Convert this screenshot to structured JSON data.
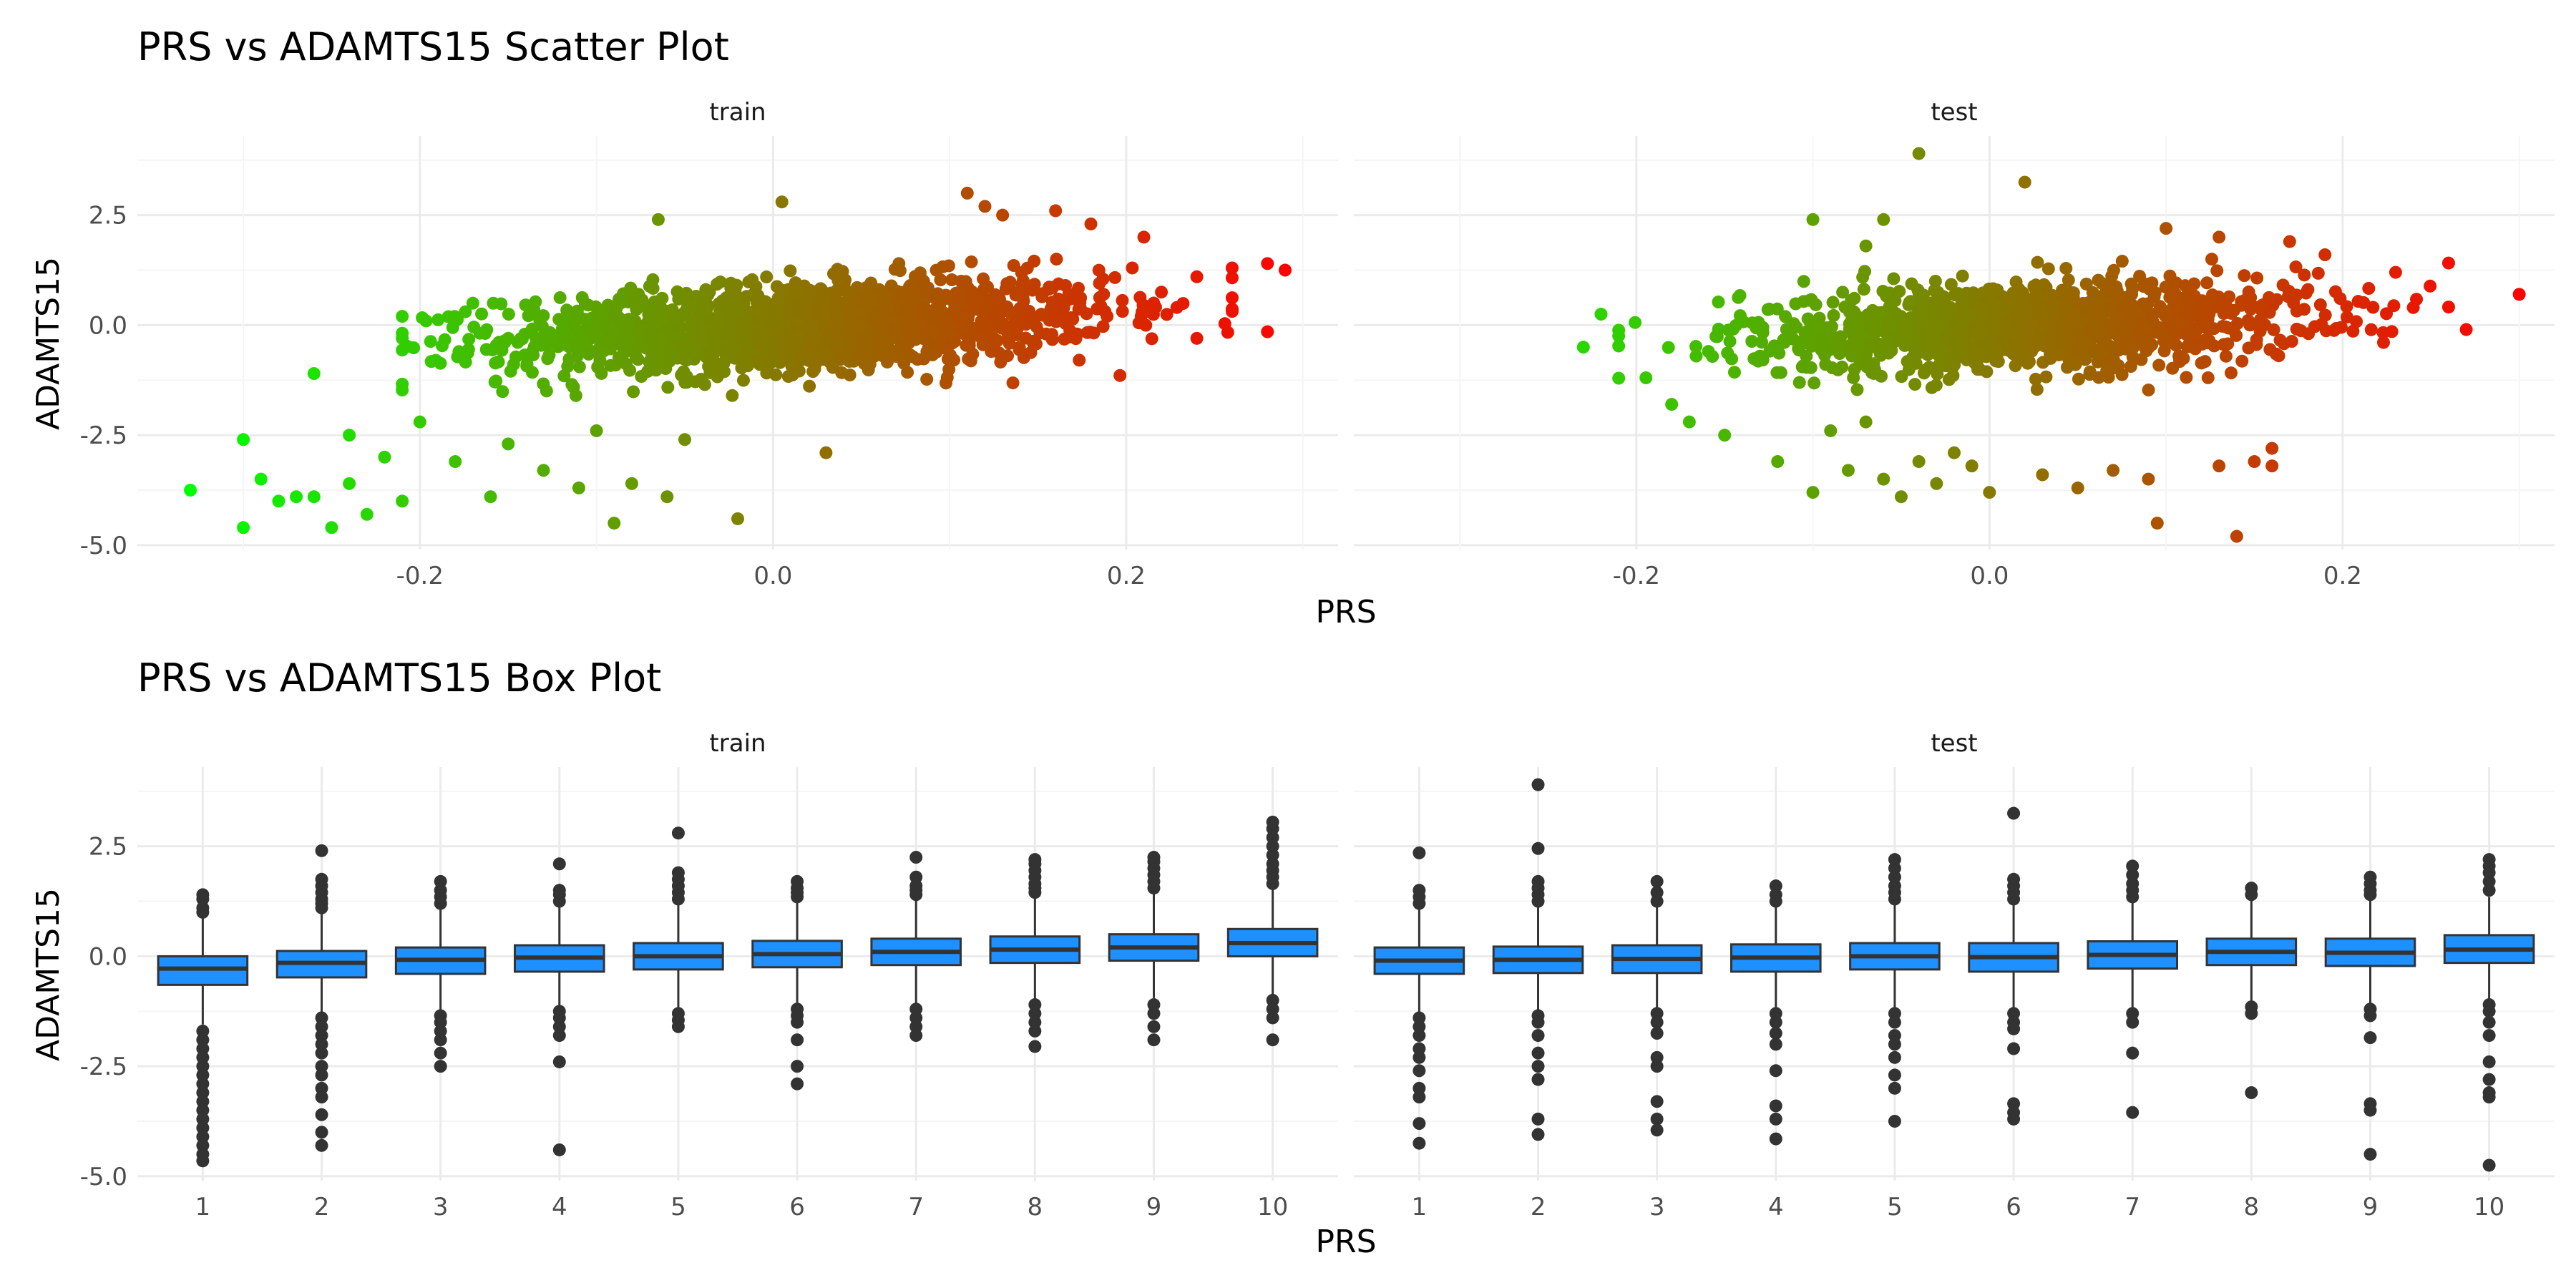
{
  "colors": {
    "grid_major": "#ebebeb",
    "grid_minor": "#f5f5f5",
    "point_low": "#00ff00",
    "point_high": "#ff0000",
    "box_fill": "#1e90ff",
    "box_line": "#333333",
    "outlier": "#333333"
  },
  "chart_data": [
    {
      "type": "scatter",
      "title": "PRS vs ADAMTS15 Scatter Plot",
      "xlabel": "PRS",
      "ylabel": "ADAMTS15",
      "color_by": "PRS",
      "color_scale": [
        "#00ff00",
        "#ff0000"
      ],
      "grid": true,
      "legend": "none",
      "panels": [
        {
          "name": "train",
          "xlim": [
            -0.36,
            0.32
          ],
          "ylim": [
            -5.1,
            4.3
          ],
          "xticks": [
            -0.2,
            0.0,
            0.2
          ],
          "xtick_labels": [
            "-0.2",
            "0.0",
            "0.2"
          ],
          "yticks": [
            -5.0,
            -2.5,
            0.0,
            2.5
          ],
          "ytick_labels": [
            "-5.0",
            "-2.5",
            "0.0",
            "2.5"
          ],
          "cloud": {
            "n": 1600,
            "x_mean": 0.02,
            "x_sd": 0.085,
            "slope": 3.2,
            "intercept": -0.05,
            "y_sd": 0.5
          },
          "outlier_points": [
            [
              -0.33,
              -3.75
            ],
            [
              -0.3,
              -2.6
            ],
            [
              -0.3,
              -4.6
            ],
            [
              -0.29,
              -3.5
            ],
            [
              -0.28,
              -4.0
            ],
            [
              -0.27,
              -3.9
            ],
            [
              -0.26,
              -3.9
            ],
            [
              -0.25,
              -4.6
            ],
            [
              -0.24,
              -3.6
            ],
            [
              -0.23,
              -4.3
            ],
            [
              -0.22,
              -3.0
            ],
            [
              -0.21,
              -4.0
            ],
            [
              -0.26,
              -1.1
            ],
            [
              -0.24,
              -2.5
            ],
            [
              -0.2,
              -2.2
            ],
            [
              -0.18,
              -3.1
            ],
            [
              -0.16,
              -3.9
            ],
            [
              -0.15,
              -2.7
            ],
            [
              -0.13,
              -3.3
            ],
            [
              -0.11,
              -3.7
            ],
            [
              -0.1,
              -2.4
            ],
            [
              -0.09,
              -4.5
            ],
            [
              -0.08,
              -3.6
            ],
            [
              -0.06,
              -3.9
            ],
            [
              -0.05,
              -2.6
            ],
            [
              -0.02,
              -4.4
            ],
            [
              0.03,
              -2.9
            ],
            [
              -0.065,
              2.4
            ],
            [
              0.005,
              2.8
            ],
            [
              0.11,
              3.0
            ],
            [
              0.12,
              2.7
            ],
            [
              0.13,
              2.5
            ],
            [
              0.16,
              2.6
            ],
            [
              0.18,
              2.3
            ],
            [
              0.21,
              2.0
            ],
            [
              0.24,
              1.1
            ],
            [
              0.26,
              1.3
            ],
            [
              0.28,
              1.4
            ],
            [
              0.29,
              1.25
            ],
            [
              0.28,
              -0.15
            ],
            [
              0.24,
              -0.3
            ],
            [
              -0.17,
              0.5
            ],
            [
              -0.21,
              0.2
            ]
          ]
        },
        {
          "name": "test",
          "xlim": [
            -0.36,
            0.32
          ],
          "ylim": [
            -5.1,
            4.3
          ],
          "xticks": [
            -0.2,
            0.0,
            0.2
          ],
          "xtick_labels": [
            "-0.2",
            "0.0",
            "0.2"
          ],
          "yticks": [
            -5.0,
            -2.5,
            0.0,
            2.5
          ],
          "ytick_labels": [
            "-5.0",
            "-2.5",
            "0.0",
            "2.5"
          ],
          "cloud": {
            "n": 1200,
            "x_mean": 0.02,
            "x_sd": 0.08,
            "slope": 2.6,
            "intercept": -0.05,
            "y_sd": 0.5
          },
          "outlier_points": [
            [
              -0.23,
              -0.5
            ],
            [
              -0.22,
              0.25
            ],
            [
              -0.18,
              -1.8
            ],
            [
              -0.17,
              -2.2
            ],
            [
              -0.15,
              -2.5
            ],
            [
              -0.12,
              -3.1
            ],
            [
              -0.1,
              -3.8
            ],
            [
              -0.09,
              -2.4
            ],
            [
              -0.08,
              -3.3
            ],
            [
              -0.07,
              -2.2
            ],
            [
              -0.06,
              -3.5
            ],
            [
              -0.05,
              -3.9
            ],
            [
              -0.04,
              -3.1
            ],
            [
              -0.03,
              -3.6
            ],
            [
              -0.02,
              -2.9
            ],
            [
              -0.01,
              -3.2
            ],
            [
              0.0,
              -3.8
            ],
            [
              0.03,
              -3.4
            ],
            [
              0.05,
              -3.7
            ],
            [
              0.07,
              -3.3
            ],
            [
              0.09,
              -3.5
            ],
            [
              0.095,
              -4.5
            ],
            [
              0.14,
              -4.8
            ],
            [
              0.13,
              -3.2
            ],
            [
              0.15,
              -3.1
            ],
            [
              0.16,
              -3.2
            ],
            [
              0.16,
              -2.8
            ],
            [
              -0.04,
              3.9
            ],
            [
              0.02,
              3.25
            ],
            [
              -0.06,
              2.4
            ],
            [
              -0.1,
              2.4
            ],
            [
              0.1,
              2.2
            ],
            [
              0.13,
              2.0
            ],
            [
              0.17,
              1.9
            ],
            [
              0.23,
              1.2
            ],
            [
              0.24,
              0.4
            ],
            [
              0.27,
              -0.1
            ],
            [
              0.3,
              0.7
            ],
            [
              -0.07,
              1.8
            ],
            [
              0.19,
              1.6
            ]
          ]
        }
      ]
    },
    {
      "type": "box",
      "title": "PRS vs ADAMTS15 Box Plot",
      "xlabel": "PRS",
      "ylabel": "ADAMTS15",
      "categories": [
        "1",
        "2",
        "3",
        "4",
        "5",
        "6",
        "7",
        "8",
        "9",
        "10"
      ],
      "grid": true,
      "legend": "none",
      "panels": [
        {
          "name": "train",
          "ylim": [
            -5.1,
            4.3
          ],
          "yticks": [
            -5.0,
            -2.5,
            0.0,
            2.5
          ],
          "ytick_labels": [
            "-5.0",
            "-2.5",
            "0.0",
            "2.5"
          ],
          "boxes": [
            {
              "q1": -0.65,
              "median": -0.28,
              "q3": 0.0,
              "lower": -1.55,
              "upper": 0.92,
              "outliers": [
                1.0,
                1.1,
                1.3,
                1.4,
                -1.7,
                -1.9,
                -2.1,
                -2.3,
                -2.5,
                -2.7,
                -2.9,
                -3.1,
                -3.3,
                -3.5,
                -3.7,
                -3.9,
                -4.1,
                -4.3,
                -4.5,
                -4.65
              ]
            },
            {
              "q1": -0.48,
              "median": -0.15,
              "q3": 0.12,
              "lower": -1.35,
              "upper": 1.0,
              "outliers": [
                1.1,
                1.2,
                1.3,
                1.45,
                1.6,
                1.75,
                2.4,
                -1.4,
                -1.6,
                -1.8,
                -2.0,
                -2.2,
                -2.5,
                -2.7,
                -3.0,
                -3.2,
                -3.6,
                -4.0,
                -4.3
              ]
            },
            {
              "q1": -0.4,
              "median": -0.08,
              "q3": 0.2,
              "lower": -1.3,
              "upper": 1.1,
              "outliers": [
                1.2,
                1.35,
                1.5,
                1.7,
                -1.35,
                -1.5,
                -1.7,
                -1.9,
                -2.2,
                -2.5
              ]
            },
            {
              "q1": -0.35,
              "median": -0.03,
              "q3": 0.25,
              "lower": -1.2,
              "upper": 1.15,
              "outliers": [
                1.25,
                1.4,
                1.5,
                2.1,
                -1.25,
                -1.4,
                -1.6,
                -1.8,
                -2.4,
                -4.4
              ]
            },
            {
              "q1": -0.3,
              "median": 0.0,
              "q3": 0.3,
              "lower": -1.2,
              "upper": 1.2,
              "outliers": [
                1.3,
                1.45,
                1.6,
                1.75,
                1.9,
                2.8,
                -1.3,
                -1.45,
                -1.6
              ]
            },
            {
              "q1": -0.25,
              "median": 0.05,
              "q3": 0.35,
              "lower": -1.1,
              "upper": 1.25,
              "outliers": [
                1.35,
                1.45,
                1.55,
                1.7,
                -1.2,
                -1.35,
                -1.5,
                -1.9,
                -2.5,
                -2.9
              ]
            },
            {
              "q1": -0.2,
              "median": 0.1,
              "q3": 0.4,
              "lower": -1.1,
              "upper": 1.3,
              "outliers": [
                1.4,
                1.5,
                1.6,
                1.8,
                2.25,
                -1.2,
                -1.4,
                -1.6,
                -1.8
              ]
            },
            {
              "q1": -0.15,
              "median": 0.15,
              "q3": 0.45,
              "lower": -1.0,
              "upper": 1.35,
              "outliers": [
                1.45,
                1.55,
                1.65,
                1.8,
                1.95,
                2.1,
                2.2,
                -1.1,
                -1.3,
                -1.5,
                -1.7,
                -2.05
              ]
            },
            {
              "q1": -0.1,
              "median": 0.2,
              "q3": 0.5,
              "lower": -0.95,
              "upper": 1.45,
              "outliers": [
                1.55,
                1.7,
                1.85,
                2.0,
                2.15,
                2.25,
                -1.1,
                -1.3,
                -1.6,
                -1.9
              ]
            },
            {
              "q1": 0.0,
              "median": 0.3,
              "q3": 0.62,
              "lower": -0.9,
              "upper": 1.55,
              "outliers": [
                1.65,
                1.8,
                1.95,
                2.1,
                2.3,
                2.5,
                2.7,
                2.9,
                3.05,
                -1.0,
                -1.2,
                -1.4,
                -1.9
              ]
            }
          ]
        },
        {
          "name": "test",
          "ylim": [
            -5.1,
            4.3
          ],
          "yticks": [
            -5.0,
            -2.5,
            0.0,
            2.5
          ],
          "ytick_labels": [
            "-5.0",
            "-2.5",
            "0.0",
            "2.5"
          ],
          "boxes": [
            {
              "q1": -0.4,
              "median": -0.1,
              "q3": 0.2,
              "lower": -1.3,
              "upper": 1.1,
              "outliers": [
                1.2,
                1.35,
                1.5,
                2.35,
                -1.4,
                -1.6,
                -1.8,
                -2.1,
                -2.3,
                -2.6,
                -3.0,
                -3.2,
                -3.8,
                -4.25
              ]
            },
            {
              "q1": -0.38,
              "median": -0.08,
              "q3": 0.22,
              "lower": -1.25,
              "upper": 1.15,
              "outliers": [
                1.25,
                1.4,
                1.55,
                1.7,
                2.45,
                3.9,
                -1.35,
                -1.5,
                -1.8,
                -2.2,
                -2.5,
                -2.8,
                -3.7,
                -4.05
              ]
            },
            {
              "q1": -0.38,
              "median": -0.06,
              "q3": 0.25,
              "lower": -1.25,
              "upper": 1.15,
              "outliers": [
                1.25,
                1.45,
                1.7,
                -1.3,
                -1.5,
                -1.75,
                -2.3,
                -2.5,
                -3.3,
                -3.7,
                -3.95
              ]
            },
            {
              "q1": -0.35,
              "median": -0.03,
              "q3": 0.27,
              "lower": -1.2,
              "upper": 1.15,
              "outliers": [
                1.25,
                1.4,
                1.6,
                -1.3,
                -1.5,
                -1.75,
                -2.0,
                -2.6,
                -3.4,
                -3.7,
                -4.15
              ]
            },
            {
              "q1": -0.3,
              "median": 0.0,
              "q3": 0.3,
              "lower": -1.2,
              "upper": 1.2,
              "outliers": [
                1.3,
                1.45,
                1.6,
                1.8,
                2.0,
                2.2,
                -1.3,
                -1.5,
                -1.8,
                -2.0,
                -2.3,
                -2.7,
                -3.0,
                -3.75
              ]
            },
            {
              "q1": -0.35,
              "median": -0.02,
              "q3": 0.3,
              "lower": -1.25,
              "upper": 1.2,
              "outliers": [
                1.3,
                1.45,
                1.6,
                1.75,
                3.25,
                -1.3,
                -1.5,
                -1.65,
                -2.1,
                -3.35,
                -3.55,
                -3.7
              ]
            },
            {
              "q1": -0.28,
              "median": 0.03,
              "q3": 0.34,
              "lower": -1.2,
              "upper": 1.25,
              "outliers": [
                1.35,
                1.5,
                1.65,
                1.85,
                2.05,
                -1.3,
                -1.5,
                -2.2,
                -3.55
              ]
            },
            {
              "q1": -0.2,
              "median": 0.1,
              "q3": 0.4,
              "lower": -1.05,
              "upper": 1.3,
              "outliers": [
                1.4,
                1.55,
                -1.15,
                -1.3,
                -3.1
              ]
            },
            {
              "q1": -0.22,
              "median": 0.08,
              "q3": 0.4,
              "lower": -1.1,
              "upper": 1.3,
              "outliers": [
                1.4,
                1.5,
                1.65,
                1.8,
                -1.2,
                -1.35,
                -1.85,
                -3.35,
                -3.5,
                -4.5
              ]
            },
            {
              "q1": -0.15,
              "median": 0.15,
              "q3": 0.48,
              "lower": -1.0,
              "upper": 1.35,
              "outliers": [
                1.5,
                1.7,
                1.9,
                2.05,
                2.2,
                -1.1,
                -1.25,
                -1.5,
                -1.8,
                -2.4,
                -2.8,
                -3.1,
                -3.2,
                -4.75
              ]
            }
          ]
        }
      ]
    }
  ]
}
